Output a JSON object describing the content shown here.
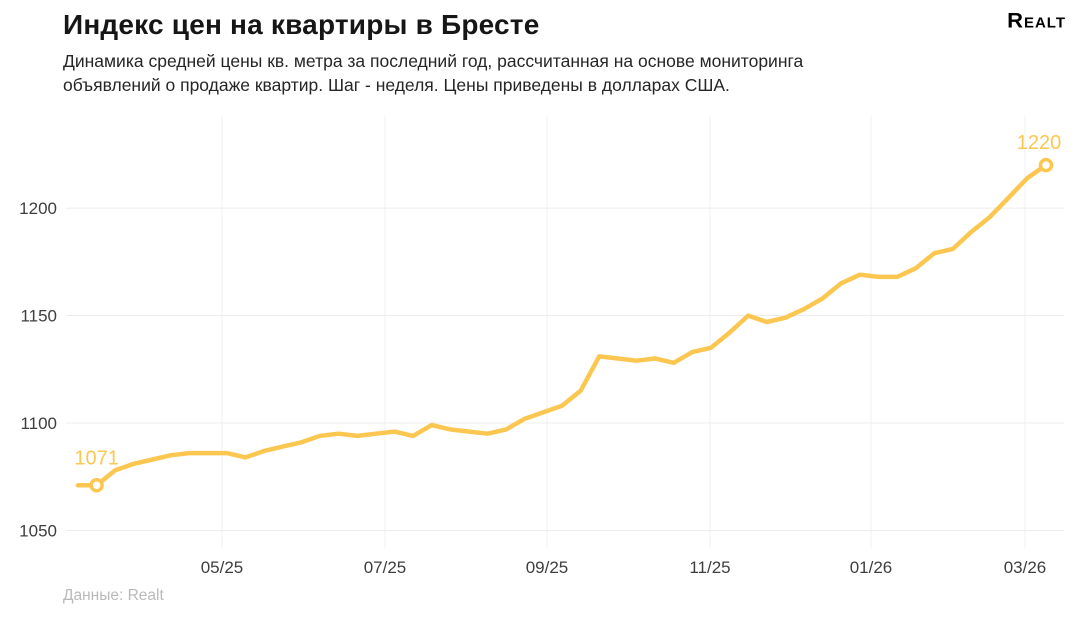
{
  "header": {
    "title": "Индекс цен на квартиры в Бресте",
    "subtitle_line1": "Динамика средней цены кв. метра за последний год, рассчитанная на основе мониторинга",
    "subtitle_line2": "объявлений о продаже квартир. Шаг - неделя. Цены приведены в долларах США.",
    "logo": "Realt"
  },
  "source": "Данные: Realt",
  "colors": {
    "accent": "#FBC751",
    "title_text": "#161616",
    "subtitle_text": "#262626",
    "tick_text": "#3e3e3e",
    "grid_h": "#ececec",
    "grid_v": "#f2f2f2",
    "source_text": "#b9b9b9",
    "background": "#ffffff",
    "marker_fill": "#ffffff"
  },
  "chart_data": {
    "type": "line",
    "title": "Индекс цен на квартиры в Бресте",
    "xlabel": "",
    "ylabel": "",
    "x_ticks": [
      "05/25",
      "07/25",
      "09/25",
      "11/25",
      "01/26",
      "03/26"
    ],
    "y_ticks": [
      1050,
      1100,
      1150,
      1200
    ],
    "ylim": [
      1040,
      1245
    ],
    "grid": true,
    "legend": "none",
    "step": "неделя",
    "values": [
      1071,
      1071,
      1078,
      1081,
      1083,
      1085,
      1086,
      1086,
      1086,
      1084,
      1087,
      1089,
      1091,
      1094,
      1095,
      1094,
      1095,
      1096,
      1094,
      1099,
      1097,
      1096,
      1095,
      1097,
      1102,
      1105,
      1108,
      1115,
      1131,
      1130,
      1129,
      1130,
      1128,
      1133,
      1135,
      1142,
      1150,
      1147,
      1149,
      1153,
      1158,
      1165,
      1169,
      1168,
      1168,
      1172,
      1179,
      1181,
      1189,
      1196,
      1205,
      1214,
      1220
    ],
    "first_point_label": "1071",
    "last_point_label": "1220",
    "first_value": 1071,
    "last_value": 1220
  }
}
